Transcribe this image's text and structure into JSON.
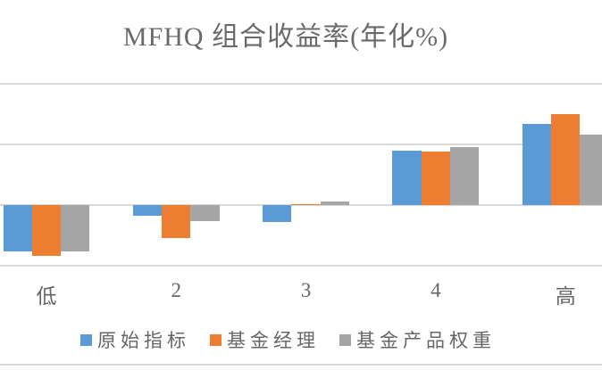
{
  "chart_data": {
    "type": "bar",
    "title": "MFHQ 组合收益率(年化%)",
    "categories": [
      "低",
      "2",
      "3",
      "4",
      "高"
    ],
    "series": [
      {
        "name": "原始指标",
        "color": "#5B9BD5",
        "values": [
          -3.8,
          -0.9,
          -1.4,
          4.5,
          6.7
        ]
      },
      {
        "name": "基金经理",
        "color": "#ED7D31",
        "values": [
          -4.2,
          -2.7,
          0.1,
          4.4,
          7.5
        ]
      },
      {
        "name": "基金产品权重",
        "color": "#A5A5A5",
        "values": [
          -3.8,
          -1.3,
          0.3,
          4.8,
          5.8
        ]
      }
    ],
    "xlabel": "",
    "ylabel": "",
    "ylim": [
      -5,
      10
    ],
    "gridline_interval": 5,
    "grid": true,
    "y_axis_tick_labels_visible": false,
    "legend_position": "bottom"
  },
  "colors": {
    "series_blue": "#5B9BD5",
    "series_orange": "#ED7D31",
    "series_gray": "#A5A5A5",
    "gridline": "#D9D9D9",
    "text": "#666666",
    "title_text": "#6A6A6A"
  }
}
